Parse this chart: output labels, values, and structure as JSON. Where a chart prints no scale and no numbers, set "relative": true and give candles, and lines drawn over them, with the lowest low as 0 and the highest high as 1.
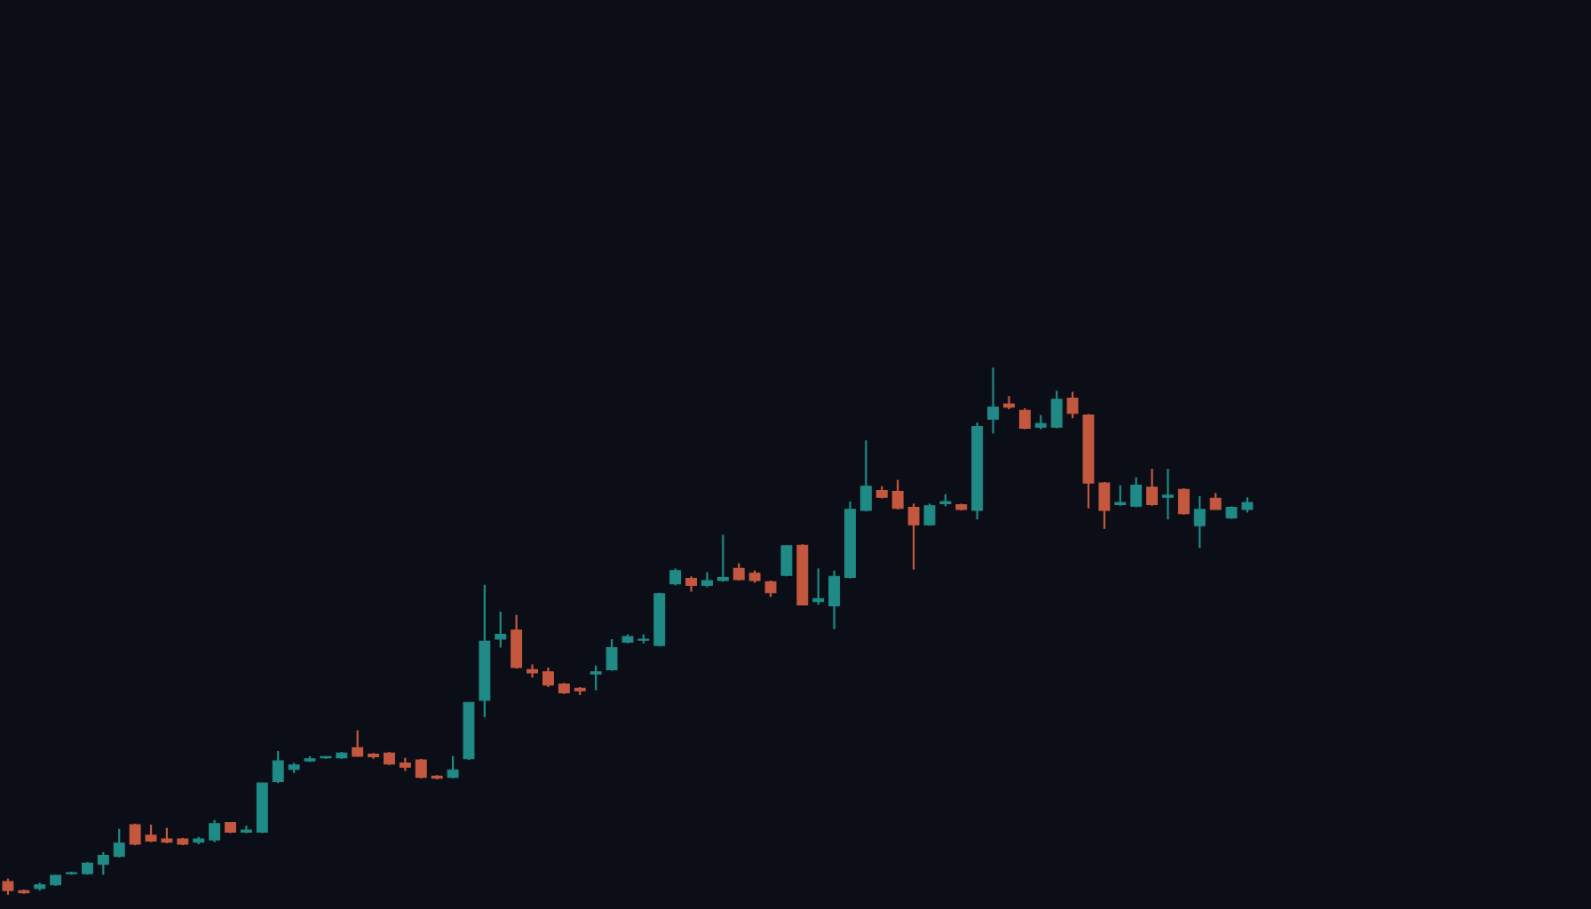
{
  "chart_data": {
    "type": "candlestick",
    "relative": true,
    "categories": [
      null,
      null,
      null,
      null,
      null,
      null,
      null,
      null,
      null,
      null,
      null,
      null,
      null,
      null,
      null,
      null,
      null,
      null,
      null,
      null,
      null,
      null,
      null,
      null,
      null,
      null,
      null,
      null,
      null,
      null,
      null,
      null,
      null,
      null,
      null,
      null,
      null,
      null,
      null,
      null,
      null,
      null,
      null,
      null,
      null,
      null,
      null,
      null,
      null,
      null,
      null,
      null,
      null,
      null,
      null,
      null,
      null,
      null,
      null,
      null,
      null,
      null,
      null,
      null,
      null,
      null,
      null,
      null,
      null,
      null,
      null,
      null,
      null,
      null,
      null,
      null,
      null,
      null,
      null
    ],
    "ohlc": [
      [
        0.025,
        0.031,
        0,
        0.008
      ],
      [
        0.008,
        0.01,
        0.002,
        0.004
      ],
      [
        0.012,
        0.023,
        0.008,
        0.019
      ],
      [
        0.019,
        0.038,
        0.017,
        0.037
      ],
      [
        0.04,
        0.044,
        0.038,
        0.042
      ],
      [
        0.04,
        0.062,
        0.038,
        0.06
      ],
      [
        0.058,
        0.081,
        0.038,
        0.075
      ],
      [
        0.073,
        0.125,
        0.071,
        0.098
      ],
      [
        0.133,
        0.135,
        0.094,
        0.096
      ],
      [
        0.113,
        0.133,
        0.1,
        0.102
      ],
      [
        0.106,
        0.127,
        0.098,
        0.1
      ],
      [
        0.106,
        0.108,
        0.094,
        0.096
      ],
      [
        0.1,
        0.11,
        0.096,
        0.106
      ],
      [
        0.104,
        0.142,
        0.1,
        0.135
      ],
      [
        0.137,
        0.138,
        0.117,
        0.119
      ],
      [
        0.119,
        0.131,
        0.117,
        0.123
      ],
      [
        0.119,
        0.212,
        0.117,
        0.212
      ],
      [
        0.215,
        0.273,
        0.212,
        0.254
      ],
      [
        0.238,
        0.25,
        0.231,
        0.246
      ],
      [
        0.254,
        0.263,
        0.252,
        0.258
      ],
      [
        0.26,
        0.263,
        0.258,
        0.262
      ],
      [
        0.26,
        0.271,
        0.258,
        0.269
      ],
      [
        0.279,
        0.312,
        0.262,
        0.263
      ],
      [
        0.267,
        0.269,
        0.258,
        0.262
      ],
      [
        0.269,
        0.271,
        0.246,
        0.248
      ],
      [
        0.25,
        0.26,
        0.235,
        0.242
      ],
      [
        0.256,
        0.258,
        0.221,
        0.223
      ],
      [
        0.225,
        0.227,
        0.219,
        0.221
      ],
      [
        0.223,
        0.263,
        0.221,
        0.237
      ],
      [
        0.258,
        0.365,
        0.256,
        0.365
      ],
      [
        0.369,
        0.588,
        0.337,
        0.481
      ],
      [
        0.485,
        0.537,
        0.469,
        0.494
      ],
      [
        0.502,
        0.531,
        0.429,
        0.431
      ],
      [
        0.427,
        0.437,
        0.412,
        0.421
      ],
      [
        0.423,
        0.431,
        0.394,
        0.398
      ],
      [
        0.4,
        0.402,
        0.381,
        0.383
      ],
      [
        0.392,
        0.394,
        0.379,
        0.387
      ],
      [
        0.419,
        0.435,
        0.388,
        0.423
      ],
      [
        0.427,
        0.485,
        0.425,
        0.469
      ],
      [
        0.479,
        0.494,
        0.477,
        0.49
      ],
      [
        0.483,
        0.494,
        0.477,
        0.485
      ],
      [
        0.473,
        0.573,
        0.471,
        0.571
      ],
      [
        0.59,
        0.619,
        0.587,
        0.615
      ],
      [
        0.6,
        0.604,
        0.575,
        0.587
      ],
      [
        0.587,
        0.612,
        0.583,
        0.596
      ],
      [
        0.596,
        0.683,
        0.594,
        0.602
      ],
      [
        0.619,
        0.629,
        0.596,
        0.598
      ],
      [
        0.61,
        0.615,
        0.592,
        0.596
      ],
      [
        0.594,
        0.596,
        0.565,
        0.573
      ],
      [
        0.606,
        0.663,
        0.604,
        0.662
      ],
      [
        0.663,
        0.665,
        0.55,
        0.55
      ],
      [
        0.556,
        0.619,
        0.55,
        0.562
      ],
      [
        0.548,
        0.615,
        0.504,
        0.604
      ],
      [
        0.602,
        0.746,
        0.6,
        0.731
      ],
      [
        0.729,
        0.862,
        0.727,
        0.775
      ],
      [
        0.767,
        0.775,
        0.752,
        0.754
      ],
      [
        0.765,
        0.787,
        0.731,
        0.733
      ],
      [
        0.735,
        0.742,
        0.617,
        0.702
      ],
      [
        0.702,
        0.742,
        0.7,
        0.738
      ],
      [
        0.742,
        0.76,
        0.737,
        0.746
      ],
      [
        0.74,
        0.742,
        0.729,
        0.731
      ],
      [
        0.729,
        0.896,
        0.712,
        0.888
      ],
      [
        0.902,
        1,
        0.875,
        0.925
      ],
      [
        0.931,
        0.946,
        0.921,
        0.925
      ],
      [
        0.919,
        0.923,
        0.883,
        0.885
      ],
      [
        0.887,
        0.91,
        0.883,
        0.894
      ],
      [
        0.887,
        0.956,
        0.885,
        0.94
      ],
      [
        0.942,
        0.954,
        0.904,
        0.913
      ],
      [
        0.91,
        0.912,
        0.733,
        0.781
      ],
      [
        0.781,
        0.783,
        0.694,
        0.729
      ],
      [
        0.74,
        0.777,
        0.738,
        0.744
      ],
      [
        0.737,
        0.792,
        0.735,
        0.777
      ],
      [
        0.773,
        0.808,
        0.738,
        0.74
      ],
      [
        0.754,
        0.808,
        0.712,
        0.758
      ],
      [
        0.769,
        0.771,
        0.721,
        0.723
      ],
      [
        0.7,
        0.756,
        0.658,
        0.731
      ],
      [
        0.752,
        0.762,
        0.731,
        0.731
      ],
      [
        0.715,
        0.737,
        0.713,
        0.735
      ],
      [
        0.731,
        0.754,
        0.725,
        0.744
      ]
    ],
    "colors": [
      "#c4583f",
      "#c4583f",
      "#1f8a86",
      "#1f8a86",
      "#1f8a86",
      "#1f8a86",
      "#1f8a86",
      "#1f8a86",
      "#c4583f",
      "#c4583f",
      "#c4583f",
      "#c4583f",
      "#1f8a86",
      "#1f8a86",
      "#c4583f",
      "#1f8a86",
      "#1f8a86",
      "#1f8a86",
      "#1f8a86",
      "#1f8a86",
      "#1f8a86",
      "#1f8a86",
      "#c4583f",
      "#c4583f",
      "#c4583f",
      "#c4583f",
      "#c4583f",
      "#c4583f",
      "#1f8a86",
      "#1f8a86",
      "#1f8a86",
      "#1f8a86",
      "#c4583f",
      "#c4583f",
      "#c4583f",
      "#c4583f",
      "#c4583f",
      "#1f8a86",
      "#1f8a86",
      "#1f8a86",
      "#1f8a86",
      "#1f8a86",
      "#1f8a86",
      "#c4583f",
      "#1f8a86",
      "#1f8a86",
      "#c4583f",
      "#c4583f",
      "#c4583f",
      "#1f8a86",
      "#c4583f",
      "#1f8a86",
      "#1f8a86",
      "#1f8a86",
      "#1f8a86",
      "#c4583f",
      "#c4583f",
      "#c4583f",
      "#1f8a86",
      "#1f8a86",
      "#c4583f",
      "#1f8a86",
      "#1f8a86",
      "#c4583f",
      "#c4583f",
      "#1f8a86",
      "#1f8a86",
      "#c4583f",
      "#c4583f",
      "#c4583f",
      "#1f8a86",
      "#1f8a86",
      "#c4583f",
      "#1f8a86",
      "#c4583f",
      "#1f8a86",
      "#c4583f",
      "#1f8a86",
      "#1f8a86"
    ]
  }
}
